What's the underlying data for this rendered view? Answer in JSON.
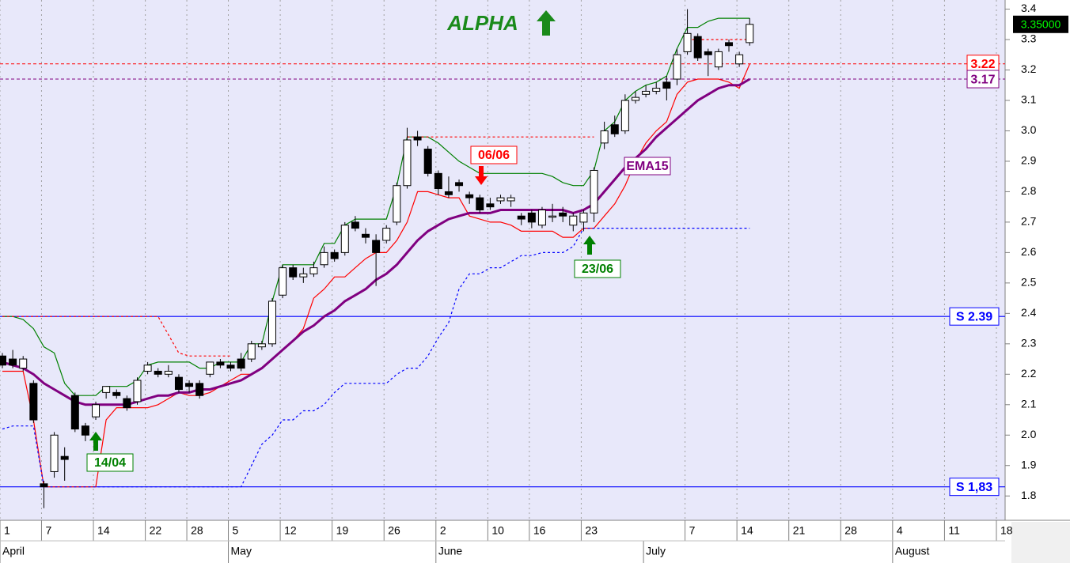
{
  "chart_data": {
    "type": "candlestick",
    "title": "ALPHA",
    "categories": [
      "1",
      null,
      null,
      null,
      "7",
      null,
      null,
      null,
      null,
      "14",
      null,
      null,
      null,
      null,
      "22",
      null,
      null,
      null,
      "28",
      null,
      null,
      null,
      "5",
      null,
      null,
      null,
      null,
      "12",
      null,
      null,
      null,
      null,
      "19",
      null,
      null,
      null,
      null,
      "26",
      null,
      null,
      null,
      null,
      "2",
      null,
      null,
      null,
      null,
      "10",
      null,
      null,
      null,
      "16",
      null,
      null,
      null,
      null,
      "23",
      null,
      null,
      null,
      null,
      null,
      null,
      null,
      null,
      null,
      "7",
      null,
      null,
      null,
      null,
      "14",
      null,
      null,
      null,
      null,
      "21",
      null,
      null,
      null,
      null,
      "28",
      null,
      null,
      null,
      null,
      "4",
      null,
      null,
      null,
      null,
      "11",
      null,
      null,
      null,
      null,
      "18"
    ],
    "months": [
      "April",
      null,
      null,
      null,
      null,
      null,
      null,
      null,
      null,
      null,
      null,
      null,
      null,
      null,
      null,
      null,
      null,
      null,
      null,
      null,
      null,
      null,
      "May",
      null,
      null,
      null,
      null,
      null,
      null,
      null,
      null,
      null,
      null,
      null,
      null,
      null,
      null,
      null,
      null,
      null,
      null,
      null,
      "June",
      null,
      null,
      null,
      null,
      null,
      null,
      null,
      null,
      null,
      null,
      null,
      null,
      null,
      null,
      null,
      null,
      null,
      null,
      null,
      "July",
      null,
      null,
      null,
      null,
      null,
      null,
      null,
      null,
      null,
      null,
      null,
      null,
      null,
      null,
      null,
      null,
      null,
      null,
      null,
      null,
      null,
      null,
      null,
      "August",
      null,
      null,
      null,
      null,
      null,
      null,
      null,
      null,
      null,
      null
    ],
    "open": [
      2.26,
      2.25,
      2.22,
      2.17,
      1.84,
      1.88,
      1.93,
      2.13,
      2.03,
      2.06,
      2.14,
      2.14,
      2.12,
      2.11,
      2.21,
      2.21,
      2.2,
      2.19,
      2.17,
      2.17,
      2.2,
      2.24,
      2.23,
      2.25,
      2.25,
      2.29,
      2.3,
      2.46,
      2.55,
      2.52,
      2.53,
      2.56,
      2.6,
      2.6,
      2.7,
      2.66,
      2.64,
      2.64,
      2.7,
      2.82,
      2.98,
      2.94,
      2.86,
      2.8,
      2.83,
      2.79,
      2.78,
      2.76,
      2.77,
      2.77,
      2.72,
      2.73,
      2.69,
      2.72,
      2.73,
      2.69,
      2.7,
      2.73,
      2.96,
      3.02,
      3.0,
      3.1,
      3.12,
      3.13,
      3.16,
      3.17,
      3.26,
      3.31,
      3.26,
      3.21,
      3.29,
      3.22,
      3.29,
      null,
      null,
      null,
      null,
      null,
      null,
      null,
      null,
      null,
      null,
      null,
      null,
      null,
      null,
      null,
      null,
      null,
      null,
      null,
      null,
      null,
      null,
      null,
      null
    ],
    "high": [
      2.27,
      2.28,
      2.26,
      2.18,
      1.85,
      2.01,
      1.96,
      2.14,
      2.04,
      2.11,
      2.16,
      2.15,
      2.13,
      2.19,
      2.24,
      2.22,
      2.23,
      2.2,
      2.18,
      2.18,
      2.24,
      2.25,
      2.24,
      2.27,
      2.31,
      2.31,
      2.45,
      2.56,
      2.56,
      2.55,
      2.57,
      2.62,
      2.61,
      2.7,
      2.72,
      2.68,
      2.66,
      2.69,
      2.83,
      3.01,
      3.0,
      2.95,
      2.87,
      2.85,
      2.84,
      2.8,
      2.79,
      2.78,
      2.79,
      2.79,
      2.73,
      2.74,
      2.75,
      2.76,
      2.75,
      2.73,
      2.74,
      2.88,
      3.03,
      3.05,
      3.12,
      3.13,
      3.15,
      3.16,
      3.18,
      3.27,
      3.4,
      3.32,
      3.27,
      3.27,
      3.3,
      3.26,
      3.37,
      null,
      null,
      null,
      null,
      null,
      null,
      null,
      null,
      null,
      null,
      null,
      null,
      null,
      null,
      null,
      null,
      null,
      null,
      null,
      null,
      null,
      null,
      null,
      null
    ],
    "low": [
      2.22,
      2.22,
      2.21,
      2.04,
      1.76,
      1.86,
      1.85,
      2.01,
      1.98,
      2.05,
      2.12,
      2.12,
      2.08,
      2.1,
      2.2,
      2.19,
      2.19,
      2.14,
      2.14,
      2.12,
      2.19,
      2.22,
      2.21,
      2.21,
      2.24,
      2.28,
      2.29,
      2.45,
      2.51,
      2.5,
      2.52,
      2.55,
      2.57,
      2.59,
      2.67,
      2.63,
      2.49,
      2.63,
      2.69,
      2.81,
      2.95,
      2.85,
      2.79,
      2.78,
      2.8,
      2.76,
      2.73,
      2.74,
      2.76,
      2.75,
      2.69,
      2.68,
      2.68,
      2.7,
      2.7,
      2.67,
      2.67,
      2.7,
      2.94,
      2.98,
      2.99,
      3.09,
      3.11,
      3.12,
      3.1,
      3.15,
      3.25,
      3.23,
      3.18,
      3.2,
      3.26,
      3.21,
      3.28,
      null,
      null,
      null,
      null,
      null,
      null,
      null,
      null,
      null,
      null,
      null,
      null,
      null,
      null,
      null,
      null,
      null,
      null,
      null,
      null,
      null,
      null,
      null,
      null
    ],
    "close": [
      2.23,
      2.23,
      2.25,
      2.05,
      1.83,
      2.0,
      1.92,
      2.02,
      2.0,
      2.1,
      2.16,
      2.13,
      2.09,
      2.18,
      2.23,
      2.2,
      2.21,
      2.15,
      2.16,
      2.13,
      2.24,
      2.23,
      2.22,
      2.22,
      2.3,
      2.3,
      2.44,
      2.55,
      2.52,
      2.53,
      2.55,
      2.6,
      2.58,
      2.69,
      2.68,
      2.65,
      2.6,
      2.68,
      2.82,
      2.97,
      2.97,
      2.86,
      2.81,
      2.79,
      2.82,
      2.78,
      2.74,
      2.75,
      2.78,
      2.78,
      2.71,
      2.7,
      2.74,
      2.72,
      2.72,
      2.72,
      2.73,
      2.87,
      3.0,
      2.99,
      3.1,
      3.11,
      3.13,
      3.14,
      3.14,
      3.25,
      3.32,
      3.24,
      3.25,
      3.26,
      3.28,
      3.25,
      3.35,
      null,
      null,
      null,
      null,
      null,
      null,
      null,
      null,
      null,
      null,
      null,
      null,
      null,
      null,
      null,
      null,
      null,
      null,
      null,
      null,
      null,
      null,
      null,
      null
    ],
    "series": [
      {
        "name": "EMA15",
        "color": "#800080",
        "values": [
          2.24,
          2.23,
          2.22,
          2.2,
          2.17,
          2.15,
          2.13,
          2.11,
          2.1,
          2.1,
          2.1,
          2.1,
          2.1,
          2.11,
          2.12,
          2.13,
          2.13,
          2.14,
          2.14,
          2.15,
          2.15,
          2.16,
          2.17,
          2.18,
          2.2,
          2.22,
          2.25,
          2.28,
          2.31,
          2.34,
          2.36,
          2.39,
          2.41,
          2.44,
          2.46,
          2.48,
          2.51,
          2.53,
          2.56,
          2.6,
          2.64,
          2.67,
          2.69,
          2.71,
          2.72,
          2.73,
          2.73,
          2.73,
          2.74,
          2.74,
          2.74,
          2.74,
          2.74,
          2.74,
          2.74,
          2.73,
          2.74,
          2.76,
          2.8,
          2.84,
          2.88,
          2.91,
          2.94,
          2.98,
          3.01,
          3.04,
          3.07,
          3.1,
          3.12,
          3.14,
          3.15,
          3.15,
          3.17,
          null,
          null,
          null,
          null,
          null,
          null,
          null,
          null,
          null,
          null,
          null,
          null,
          null,
          null,
          null,
          null,
          null,
          null,
          null,
          null,
          null,
          null,
          null,
          null
        ]
      }
    ],
    "overlays": [
      {
        "color": "#008000",
        "dashed": false,
        "values": [
          2.39,
          2.39,
          2.38,
          2.35,
          2.29,
          2.27,
          2.17,
          2.13,
          2.13,
          2.13,
          2.16,
          2.16,
          2.16,
          2.18,
          2.23,
          2.24,
          2.24,
          2.24,
          2.24,
          2.22,
          2.22,
          2.24,
          2.24,
          2.24,
          2.3,
          2.3,
          2.44,
          2.56,
          2.56,
          2.56,
          2.56,
          2.63,
          2.63,
          2.69,
          2.71,
          2.71,
          2.71,
          2.71,
          2.82,
          2.98,
          2.98,
          2.98,
          2.96,
          2.93,
          2.9,
          2.88,
          2.86,
          2.86,
          2.86,
          2.86,
          2.86,
          2.86,
          2.86,
          2.85,
          2.83,
          2.82,
          2.82,
          2.87,
          3.0,
          3.03,
          3.1,
          3.13,
          3.15,
          3.16,
          3.18,
          3.27,
          3.34,
          3.34,
          3.36,
          3.37,
          3.37,
          3.37,
          3.37,
          null,
          null,
          null,
          null,
          null,
          null,
          null,
          null,
          null,
          null,
          null,
          null,
          null,
          null,
          null,
          null,
          null,
          null,
          null,
          null,
          null,
          null,
          null,
          null
        ]
      },
      {
        "color": "#ff0000",
        "dashed": false,
        "values": [
          2.21,
          2.21,
          2.21,
          2.05,
          1.83,
          1.83,
          1.83,
          1.83,
          1.83,
          1.83,
          2.05,
          2.09,
          2.09,
          2.09,
          2.09,
          2.1,
          2.12,
          2.14,
          2.13,
          2.13,
          2.14,
          2.16,
          2.18,
          2.2,
          2.2,
          2.22,
          2.25,
          2.28,
          2.31,
          2.35,
          2.45,
          2.48,
          2.52,
          2.52,
          2.55,
          2.58,
          2.6,
          2.6,
          2.64,
          2.7,
          2.8,
          2.8,
          2.79,
          2.78,
          2.78,
          2.72,
          2.71,
          2.7,
          2.7,
          2.69,
          2.67,
          2.67,
          2.67,
          2.67,
          2.65,
          2.65,
          2.68,
          2.68,
          2.72,
          2.76,
          2.82,
          2.9,
          2.96,
          3.0,
          3.03,
          3.12,
          3.16,
          3.17,
          3.17,
          3.17,
          3.16,
          3.14,
          3.22,
          null,
          null,
          null,
          null,
          null,
          null,
          null,
          null,
          null,
          null,
          null,
          null,
          null,
          null,
          null,
          null,
          null,
          null,
          null,
          null,
          null,
          null,
          null,
          null
        ]
      },
      {
        "color": "#ff0000",
        "dashed": true,
        "values": [
          2.39,
          2.39,
          2.39,
          2.39,
          2.39,
          2.39,
          2.39,
          2.39,
          2.39,
          2.39,
          2.39,
          2.39,
          2.39,
          2.39,
          2.39,
          2.39,
          2.33,
          2.27,
          2.26,
          2.26,
          2.26,
          2.26,
          2.26,
          null,
          null,
          null,
          null,
          null,
          null,
          null,
          null,
          null,
          null,
          null,
          null,
          null,
          null,
          null,
          null,
          2.98,
          2.98,
          2.98,
          2.98,
          2.98,
          2.98,
          2.98,
          2.98,
          2.98,
          2.98,
          2.98,
          2.98,
          2.98,
          2.98,
          2.98,
          2.98,
          2.98,
          2.98,
          2.98,
          null,
          null,
          null,
          null,
          null,
          null,
          null,
          null,
          3.3,
          3.3,
          3.3,
          3.3,
          3.3,
          3.3,
          3.3,
          null,
          null,
          null,
          null,
          null,
          null,
          null,
          null,
          null,
          null,
          null,
          null,
          null,
          null,
          null,
          null,
          null,
          null,
          null,
          null,
          null,
          null,
          null,
          null
        ]
      },
      {
        "color": "#0000ff",
        "dashed": true,
        "values": [
          2.02,
          2.03,
          2.03,
          2.03,
          1.83,
          1.83,
          1.83,
          1.83,
          1.83,
          1.83,
          1.83,
          1.83,
          1.83,
          1.83,
          1.83,
          1.83,
          1.83,
          1.83,
          1.83,
          1.83,
          1.83,
          1.83,
          1.83,
          1.83,
          1.9,
          1.97,
          2.0,
          2.05,
          2.05,
          2.08,
          2.08,
          2.1,
          2.14,
          2.17,
          2.17,
          2.17,
          2.17,
          2.17,
          2.2,
          2.22,
          2.22,
          2.26,
          2.32,
          2.37,
          2.48,
          2.53,
          2.53,
          2.55,
          2.55,
          2.57,
          2.59,
          2.59,
          2.6,
          2.6,
          2.6,
          2.62,
          2.68,
          2.68,
          2.68,
          2.68,
          2.68,
          2.68,
          2.68,
          2.68,
          2.68,
          2.68,
          2.68,
          2.68,
          2.68,
          2.68,
          2.68,
          2.68,
          2.68,
          null,
          null,
          null,
          null,
          null,
          null,
          null,
          null,
          null,
          null,
          null,
          null,
          null,
          null,
          null,
          null,
          null,
          null,
          null,
          null,
          null,
          null,
          null,
          null
        ]
      }
    ],
    "levels": [
      {
        "value": 3.22,
        "color": "#ff0000",
        "dashed": true
      },
      {
        "value": 3.17,
        "color": "#800080",
        "dashed": true
      },
      {
        "value": 2.39,
        "label": "S 2.39",
        "color": "#0000ff",
        "dashed": false
      },
      {
        "value": 1.83,
        "label": "S 1,83",
        "color": "#0000ff",
        "dashed": false
      }
    ],
    "last_price": {
      "value": 3.35,
      "label": "3.35000"
    },
    "annotations": [
      {
        "text": "14/04",
        "color": "#008000",
        "direction": "up"
      },
      {
        "text": "06/06",
        "color": "#ff0000",
        "direction": "down"
      },
      {
        "text": "23/06",
        "color": "#008000",
        "direction": "up"
      },
      {
        "text": "EMA15",
        "color": "#800080",
        "direction": "none"
      }
    ],
    "ylim": [
      1.72,
      3.43
    ],
    "yticks": [
      1.8,
      1.9,
      {
        "value": 2.0,
        "label": "2.0"
      },
      2.1,
      2.2,
      2.3,
      2.4,
      2.5,
      2.6,
      2.7,
      2.8,
      2.9,
      {
        "value": 3.0,
        "label": "3.0"
      },
      3.1,
      3.2,
      3.3,
      3.4
    ],
    "grid": true,
    "background": "#e8e8fa"
  }
}
